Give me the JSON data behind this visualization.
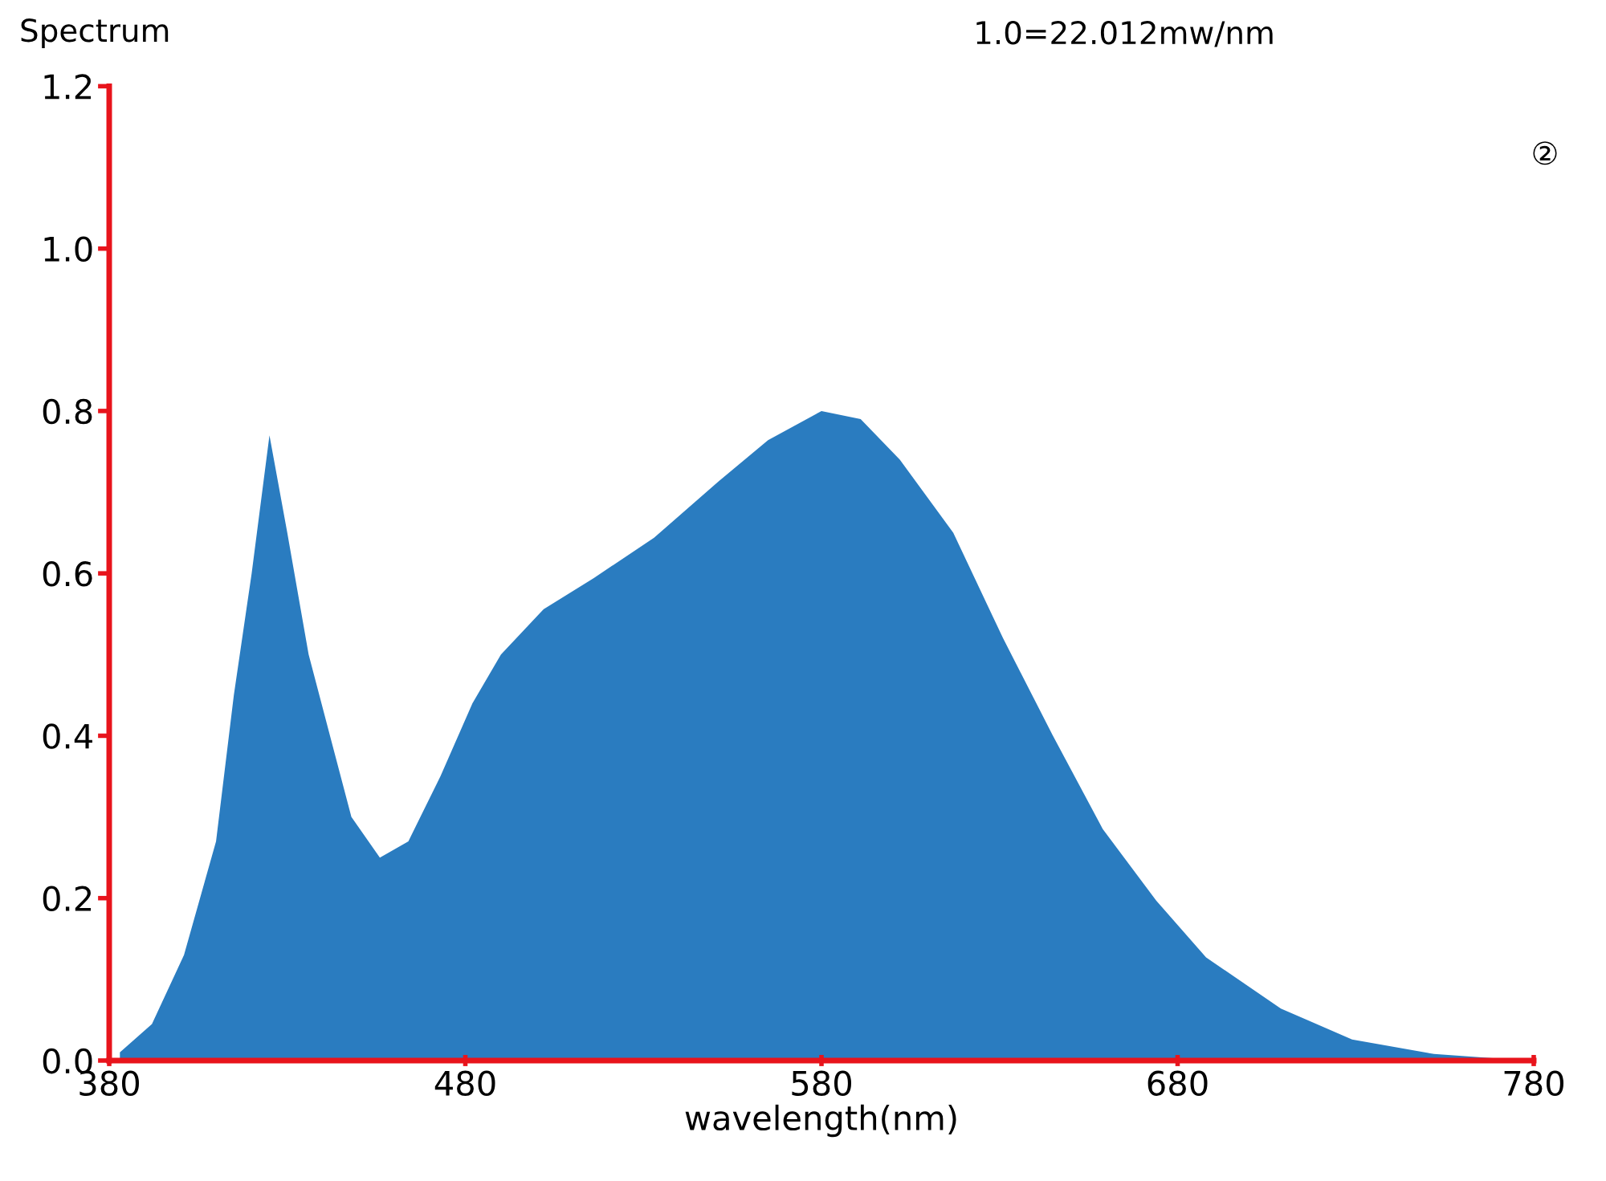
{
  "chart_data": {
    "type": "area",
    "ylabel": "Spectrum",
    "xlabel": "wavelength(nm)",
    "annotations": [
      "1.0=22.012mw/nm",
      "②"
    ],
    "xlim": [
      380,
      780
    ],
    "xticks": [
      380,
      480,
      580,
      680,
      780
    ],
    "ylim": [
      0,
      1.2
    ],
    "yticks": [
      {
        "value": 0,
        "label": "0.0"
      },
      {
        "value": 0.2,
        "label": "0.2"
      },
      {
        "value": 0.4,
        "label": "0.4"
      },
      {
        "value": 0.6,
        "label": "0.6"
      },
      {
        "value": 0.8,
        "label": "0.8"
      },
      {
        "value": 1.0,
        "label": "1.0"
      },
      {
        "value": 1.2,
        "label": "1.2"
      }
    ],
    "grid": false,
    "series": [
      {
        "color": "#2a7cc0",
        "x": [
          383,
          392,
          401,
          410,
          415,
          420,
          425,
          430,
          436,
          442,
          448,
          456,
          464,
          473,
          482,
          490,
          502,
          516,
          533,
          551,
          565,
          580,
          591,
          602,
          617,
          631,
          645,
          659,
          674,
          688,
          709,
          729,
          752,
          778
        ],
        "values": [
          0.01,
          0.045,
          0.13,
          0.27,
          0.45,
          0.6,
          0.77,
          0.65,
          0.5,
          0.4,
          0.3,
          0.25,
          0.27,
          0.35,
          0.44,
          0.5,
          0.556,
          0.594,
          0.644,
          0.713,
          0.764,
          0.8,
          0.79,
          0.74,
          0.65,
          0.52,
          0.4,
          0.285,
          0.197,
          0.127,
          0.064,
          0.026,
          0.008,
          0.0
        ]
      }
    ]
  }
}
